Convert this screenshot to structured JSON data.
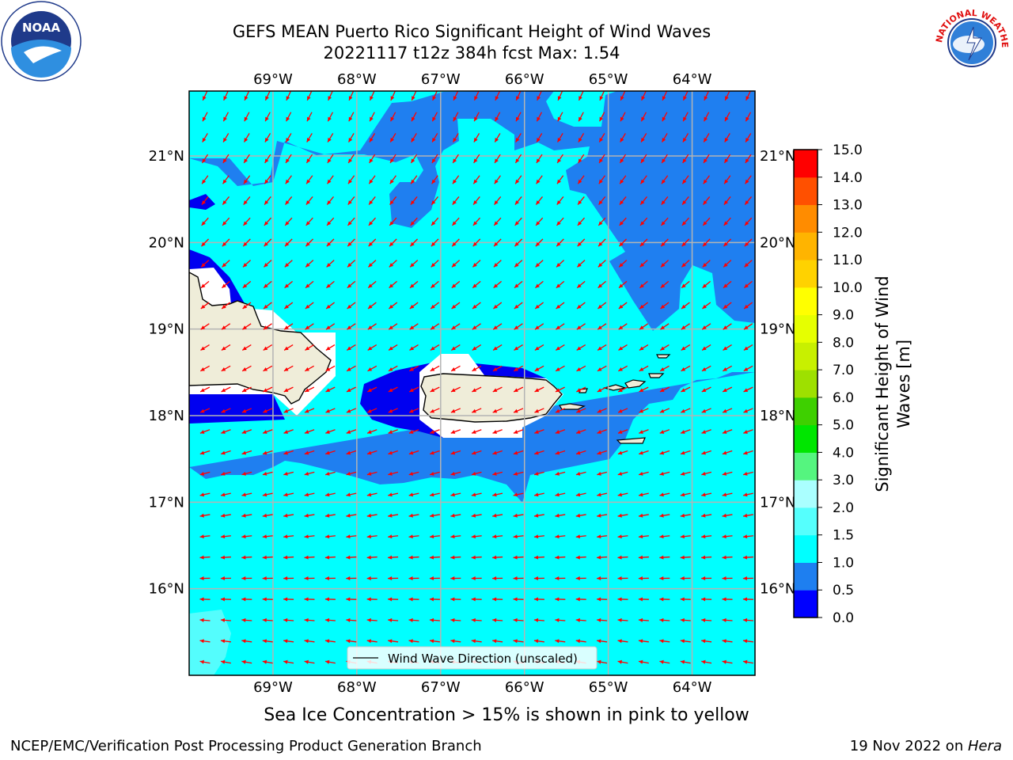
{
  "title": {
    "line1": "GEFS MEAN Puerto Rico Significant Height of Wind Waves",
    "line2": "20221117 t12z 384h fcst   Max: 1.54"
  },
  "map": {
    "lon_labels": [
      "69°W",
      "68°W",
      "67°W",
      "66°W",
      "65°W",
      "64°W"
    ],
    "lat_labels": [
      "21°N",
      "20°N",
      "19°N",
      "18°N",
      "17°N",
      "16°N"
    ],
    "lon_values": [
      -69,
      -68,
      -67,
      -66,
      -65,
      -64
    ],
    "lat_values": [
      21,
      20,
      19,
      18,
      17,
      16
    ],
    "extent": {
      "lon_min": -70,
      "lon_max": -63.25,
      "lat_min": 15,
      "lat_max": 21.75
    },
    "colors": {
      "land": "#efedd9",
      "band_0_05": "#0000f0",
      "band_05_10": "#1f7ff0",
      "band_10_15": "#00ffff",
      "band_15_20": "#54fdfd",
      "arrow": "#ff0000",
      "grid": "#b4b4b4"
    },
    "legend_label": "Wind Wave Direction (unscaled)"
  },
  "colorbar": {
    "label_line1": "Significant Height of Wind",
    "label_line2": "Waves [m]",
    "ticks": [
      "0.0",
      "0.5",
      "1.0",
      "1.5",
      "2.0",
      "3.0",
      "4.0",
      "5.0",
      "6.0",
      "7.0",
      "8.0",
      "9.0",
      "10.0",
      "11.0",
      "12.0",
      "13.0",
      "14.0",
      "15.0"
    ],
    "colors": [
      "#0000ff",
      "#1e7ff0",
      "#00ffff",
      "#55fffd",
      "#aaffff",
      "#55f57f",
      "#00e600",
      "#3ed000",
      "#9ee000",
      "#c8f000",
      "#e6ff00",
      "#ffff00",
      "#ffd200",
      "#ffb400",
      "#ff8c00",
      "#ff5000",
      "#ff0000"
    ]
  },
  "note": "Sea Ice Concentration > 15% is shown in pink to yellow",
  "credit": "NCEP/EMC/Verification Post Processing Product Generation Branch",
  "date": "19 Nov 2022 on ",
  "host": "Hera",
  "logos": {
    "noaa_text": "NOAA",
    "nws_text": "NATIONAL WEATHER SERVICE"
  }
}
